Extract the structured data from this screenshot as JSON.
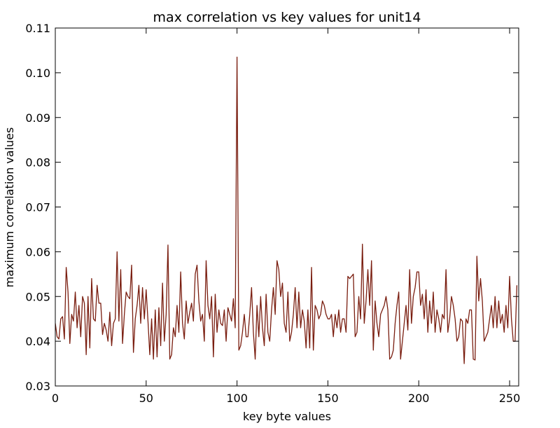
{
  "chart_data": {
    "type": "line",
    "title": "max correlation vs key values for unit14",
    "xlabel": "key byte values",
    "ylabel": "maximum correlation values",
    "xlim": [
      0,
      255
    ],
    "ylim": [
      0.03,
      0.11
    ],
    "xticks": [
      0,
      50,
      100,
      150,
      200,
      250
    ],
    "yticks": [
      0.03,
      0.04,
      0.05,
      0.06,
      0.07,
      0.08,
      0.09,
      0.1,
      0.11
    ],
    "xtick_labels": [
      "0",
      "50",
      "100",
      "150",
      "200",
      "250"
    ],
    "ytick_labels": [
      "0.03",
      "0.04",
      "0.05",
      "0.06",
      "0.07",
      "0.08",
      "0.09",
      "0.10",
      "0.11"
    ],
    "grid": false,
    "line_color": "#7a1e10",
    "series": [
      {
        "values": [
          0.044,
          0.041,
          0.0405,
          0.045,
          0.0455,
          0.0405,
          0.0565,
          0.051,
          0.0395,
          0.046,
          0.0445,
          0.051,
          0.043,
          0.048,
          0.041,
          0.05,
          0.0485,
          0.037,
          0.05,
          0.0385,
          0.054,
          0.045,
          0.0445,
          0.0525,
          0.0485,
          0.0485,
          0.0415,
          0.044,
          0.0425,
          0.04,
          0.0465,
          0.039,
          0.044,
          0.045,
          0.06,
          0.0445,
          0.056,
          0.0395,
          0.046,
          0.051,
          0.05,
          0.0495,
          0.057,
          0.0375,
          0.045,
          0.048,
          0.0525,
          0.044,
          0.052,
          0.045,
          0.0515,
          0.0445,
          0.037,
          0.045,
          0.036,
          0.047,
          0.0365,
          0.0475,
          0.039,
          0.053,
          0.04,
          0.046,
          0.0615,
          0.036,
          0.037,
          0.043,
          0.041,
          0.048,
          0.042,
          0.0555,
          0.044,
          0.0405,
          0.049,
          0.044,
          0.0465,
          0.0485,
          0.0445,
          0.055,
          0.057,
          0.049,
          0.0445,
          0.046,
          0.04,
          0.058,
          0.048,
          0.045,
          0.05,
          0.0365,
          0.0505,
          0.042,
          0.047,
          0.044,
          0.0435,
          0.047,
          0.04,
          0.0475,
          0.046,
          0.0445,
          0.0495,
          0.043,
          0.1035,
          0.038,
          0.039,
          0.042,
          0.046,
          0.041,
          0.041,
          0.046,
          0.052,
          0.042,
          0.036,
          0.048,
          0.041,
          0.05,
          0.043,
          0.039,
          0.0505,
          0.042,
          0.04,
          0.047,
          0.052,
          0.046,
          0.058,
          0.056,
          0.05,
          0.053,
          0.044,
          0.042,
          0.051,
          0.04,
          0.042,
          0.046,
          0.052,
          0.043,
          0.051,
          0.043,
          0.047,
          0.0445,
          0.0385,
          0.047,
          0.0385,
          0.0565,
          0.038,
          0.048,
          0.047,
          0.045,
          0.046,
          0.049,
          0.048,
          0.046,
          0.045,
          0.045,
          0.046,
          0.041,
          0.046,
          0.043,
          0.047,
          0.042,
          0.045,
          0.045,
          0.042,
          0.0545,
          0.054,
          0.0545,
          0.055,
          0.041,
          0.042,
          0.05,
          0.045,
          0.0617,
          0.044,
          0.049,
          0.056,
          0.048,
          0.058,
          0.038,
          0.049,
          0.044,
          0.041,
          0.046,
          0.047,
          0.048,
          0.05,
          0.047,
          0.036,
          0.0365,
          0.038,
          0.044,
          0.048,
          0.051,
          0.036,
          0.04,
          0.044,
          0.048,
          0.0425,
          0.056,
          0.044,
          0.05,
          0.052,
          0.0555,
          0.0555,
          0.048,
          0.0505,
          0.045,
          0.0515,
          0.042,
          0.049,
          0.044,
          0.051,
          0.042,
          0.047,
          0.045,
          0.042,
          0.046,
          0.045,
          0.056,
          0.042,
          0.045,
          0.05,
          0.048,
          0.045,
          0.04,
          0.041,
          0.045,
          0.0445,
          0.035,
          0.045,
          0.044,
          0.047,
          0.047,
          0.036,
          0.0358,
          0.059,
          0.049,
          0.054,
          0.049,
          0.04,
          0.041,
          0.042,
          0.045,
          0.048,
          0.043,
          0.05,
          0.043,
          0.049,
          0.044,
          0.046,
          0.042,
          0.048,
          0.043,
          0.0545,
          0.045,
          0.04,
          0.04,
          0.0525
        ]
      }
    ]
  }
}
